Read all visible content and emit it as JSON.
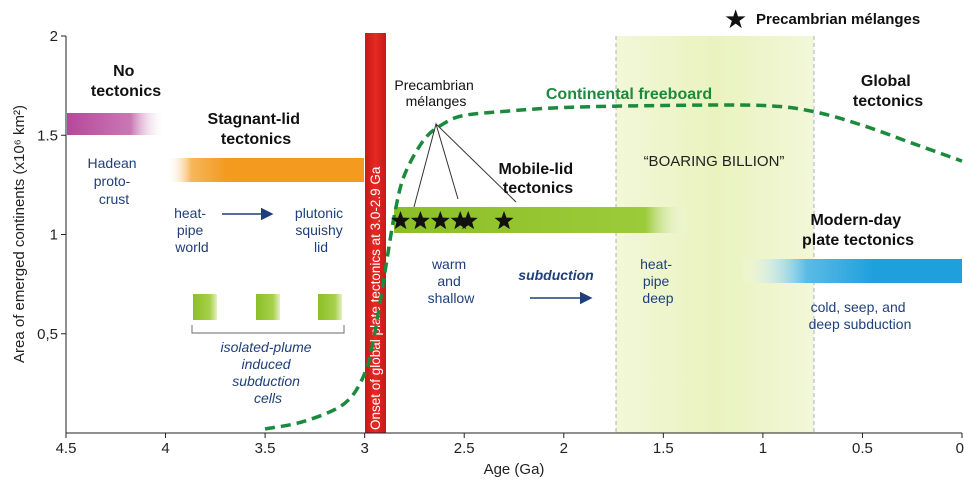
{
  "legend": {
    "marker": "★",
    "label": "Precambrian mélanges"
  },
  "axes": {
    "xlabel": "Age (Ga)",
    "ylabel": "Area of emerged continents (x10⁶ km²)",
    "xticks": [
      "4.5",
      "4",
      "3.5",
      "3",
      "2.5",
      "2",
      "1.5",
      "1",
      "0.5",
      "0"
    ],
    "yticks": [
      "2",
      "1.5",
      "1",
      "0,5"
    ]
  },
  "labels": {
    "no_tectonics": [
      "No",
      "tectonics"
    ],
    "hadean": [
      "Hadean",
      "proto-",
      "crust"
    ],
    "stagnant_lid": [
      "Stagnant-lid",
      "tectonics"
    ],
    "heat_pipe_world": [
      "heat-",
      "pipe",
      "world"
    ],
    "plutonic": [
      "plutonic",
      "squishy",
      "lid"
    ],
    "isolated_plume": [
      "isolated-plume",
      "induced",
      "subduction",
      "cells"
    ],
    "onset": "Onset of global plate tectonics at 3.0-2.9 Ga",
    "precambrian_melanges": [
      "Precambrian",
      "mélanges"
    ],
    "continental_freeboard": "Continental freeboard",
    "mobile_lid": [
      "Mobile-lid",
      "tectonics"
    ],
    "warm_shallow": [
      "warm",
      "and",
      "shallow"
    ],
    "subduction": "subduction",
    "heat_pipe_deep": [
      "heat-",
      "pipe",
      "deep"
    ],
    "boaring_billion": "“BOARING BILLION”",
    "global_tectonics": [
      "Global",
      "tectonics"
    ],
    "modern_day": [
      "Modern-day",
      "plate tectonics"
    ],
    "cold_seep": [
      "cold, seep, and",
      "deep subduction"
    ]
  },
  "colors": {
    "hadean_bar": "#b7479b",
    "stagnant_bar": "#f39a1f",
    "mobile_bar": "#8cbf26",
    "modern_bar": "#1fa0dc",
    "onset_band": "#e02020",
    "boaring_band": "#eef5c6",
    "freeboard_curve": "#1b8a3c",
    "arrow": "#1f3f7a"
  },
  "chart_data": {
    "type": "line",
    "series": [
      {
        "name": "Continental freeboard",
        "x": [
          3.5,
          3.3,
          3.1,
          3.0,
          2.95,
          2.9,
          2.85,
          2.8,
          2.7,
          2.6,
          2.5,
          2.3,
          2.0,
          1.5,
          1.0,
          0.75,
          0.5,
          0.25,
          0.0
        ],
        "y": [
          0.02,
          0.06,
          0.15,
          0.3,
          0.5,
          0.8,
          1.1,
          1.3,
          1.48,
          1.56,
          1.6,
          1.62,
          1.64,
          1.65,
          1.65,
          1.62,
          1.55,
          1.46,
          1.37
        ]
      }
    ],
    "melange_markers_x": [
      2.82,
      2.72,
      2.62,
      2.52,
      2.48,
      2.3
    ],
    "xlim": [
      4.5,
      0
    ],
    "ylim": [
      0,
      2
    ]
  }
}
